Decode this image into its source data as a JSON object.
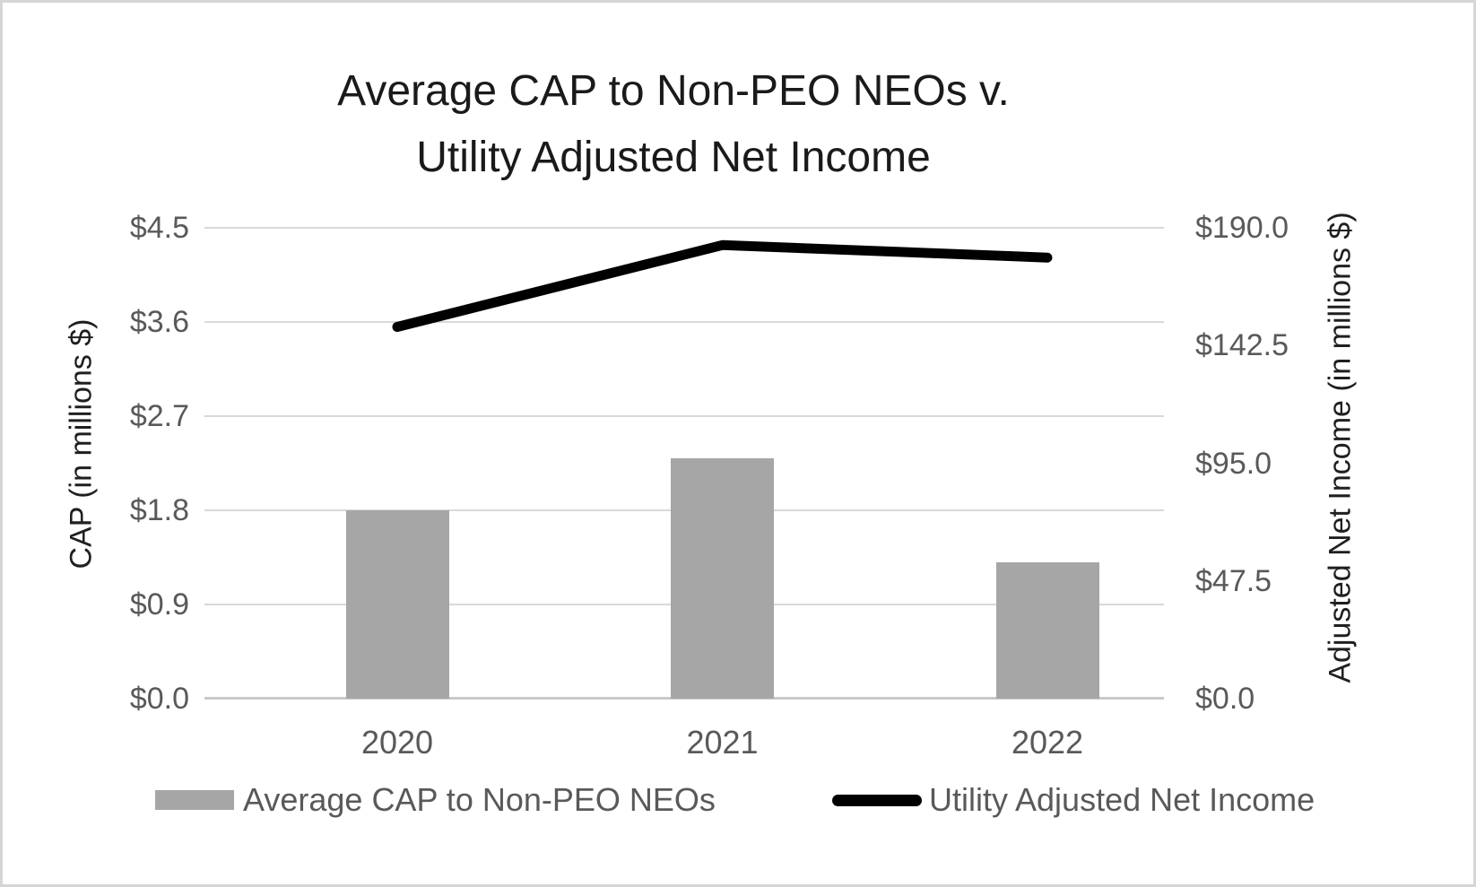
{
  "title": {
    "line1": "Average CAP to Non-PEO NEOs v.",
    "line2": "Utility Adjusted Net Income"
  },
  "left_axis": {
    "title": "CAP (in millions $)",
    "tick_labels": [
      "$4.5",
      "$3.6",
      "$2.7",
      "$1.8",
      "$0.9",
      "$0.0"
    ],
    "min": 0,
    "max": 4.5
  },
  "right_axis": {
    "title": "Adjusted Net Income (in millions $)",
    "tick_labels": [
      "$190.0",
      "$142.5",
      "$95.0",
      "$47.5",
      "$0.0"
    ],
    "min": 0,
    "max": 190
  },
  "x_axis": {
    "categories": [
      "2020",
      "2021",
      "2022"
    ]
  },
  "legend": {
    "items": [
      {
        "label": "Average CAP to Non-PEO NEOs",
        "swatch": "bar"
      },
      {
        "label": "Utility Adjusted Net Income",
        "swatch": "line"
      }
    ]
  },
  "colors": {
    "bar": "#a6a6a6",
    "line": "#000000",
    "gridline": "#d9d9d9",
    "axis_line": "#c9c9c9",
    "tick_text": "#595959",
    "title_text": "#1a1a1a"
  },
  "chart_data": {
    "type": "bar",
    "subtype": "combo-bar-line-dual-axis",
    "title": "Average CAP to Non-PEO NEOs v. Utility Adjusted Net Income",
    "categories": [
      "2020",
      "2021",
      "2022"
    ],
    "series": [
      {
        "name": "Average CAP to Non-PEO NEOs",
        "type": "bar",
        "axis": "left",
        "color": "#a6a6a6",
        "values": [
          1.8,
          2.3,
          1.3
        ]
      },
      {
        "name": "Utility Adjusted Net Income",
        "type": "line",
        "axis": "right",
        "color": "#000000",
        "values": [
          150,
          183,
          178
        ]
      }
    ],
    "xlabel": "",
    "left_ylabel": "CAP (in millions $)",
    "right_ylabel": "Adjusted Net Income (in millions $)",
    "left_ylim": [
      0,
      4.5
    ],
    "right_ylim": [
      0,
      190
    ],
    "left_tick_step": 0.9,
    "right_tick_step": 47.5,
    "grid": true,
    "legend_position": "bottom"
  }
}
